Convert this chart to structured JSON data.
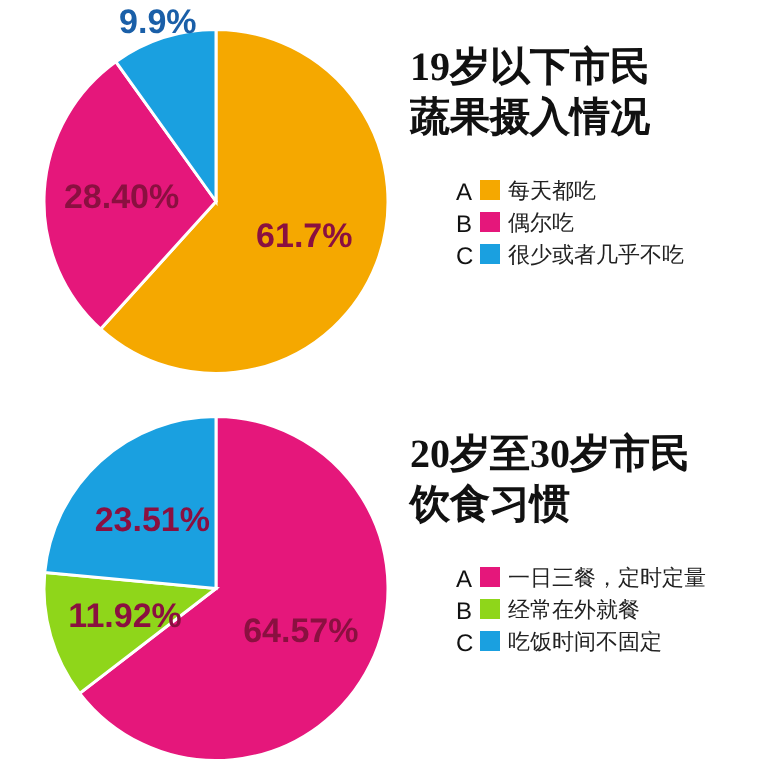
{
  "chart_data": [
    {
      "type": "pie",
      "title": "19岁以下市民",
      "subtitle": "蔬果摄入情况",
      "categories": [
        "每天都吃",
        "偶尔吃",
        "很少或者几乎不吃"
      ],
      "annotations": [
        "A",
        "B",
        "C"
      ],
      "values": [
        61.7,
        28.4,
        9.9
      ],
      "colors": [
        "#f5a800",
        "#e5177b",
        "#1aa0e0"
      ],
      "value_labels": [
        "61.7%",
        "28.40%",
        "9.9%"
      ],
      "legend": "right"
    },
    {
      "type": "pie",
      "title": "20岁至30岁市民",
      "subtitle": "饮食习惯",
      "categories": [
        "一日三餐，定时定量",
        "经常在外就餐",
        "吃饭时间不固定"
      ],
      "annotations": [
        "A",
        "B",
        "C"
      ],
      "values": [
        64.57,
        11.92,
        23.51
      ],
      "colors": [
        "#e5177b",
        "#8fd61a",
        "#1aa0e0"
      ],
      "value_labels": [
        "64.57%",
        "11.92%",
        "23.51%"
      ],
      "legend": "right"
    }
  ]
}
